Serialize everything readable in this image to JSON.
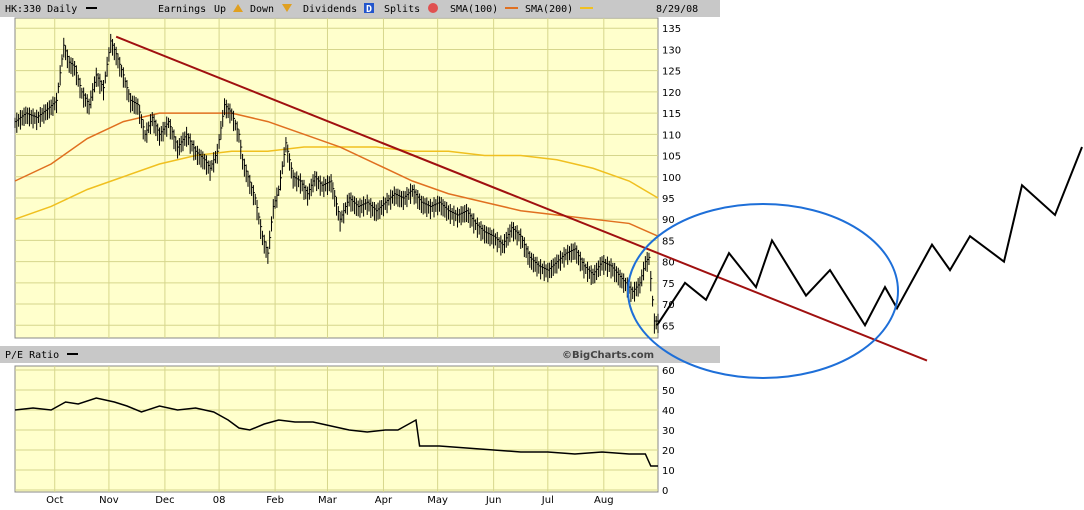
{
  "header": {
    "ticker_label": "HK:330 Daily",
    "earnings_label": "Earnings",
    "up_label": "Up",
    "down_label": "Down",
    "dividends_label": "Dividends",
    "dividends_marker": "D",
    "splits_label": "Splits",
    "sma100_label": "SMA(100)",
    "sma200_label": "SMA(200)",
    "date": "8/29/08"
  },
  "pe_panel": {
    "label": "P/E Ratio",
    "brand": "©BigCharts.com"
  },
  "colors": {
    "panel_bg": "#ffffcc",
    "grid": "#d6d68c",
    "header_bg": "#c8c8c8",
    "price": "#000000",
    "sma100": "#e07020",
    "sma200": "#f0c020",
    "trendline": "#a01010",
    "ellipse": "#1e6fd8",
    "projection": "#000000",
    "dividend_marker": "#2255cc",
    "split_marker": "#e05050",
    "earnings_up": "#e0a020",
    "earnings_down": "#e0a020"
  },
  "chart_data": [
    {
      "type": "line",
      "panel": "price",
      "ylim": [
        62,
        136
      ],
      "yticks": [
        65,
        70,
        75,
        80,
        85,
        90,
        95,
        100,
        105,
        110,
        115,
        120,
        125,
        130,
        135
      ],
      "x_axis": {
        "ticks": [
          "Oct",
          "Nov",
          "Dec",
          "08",
          "Feb",
          "Mar",
          "Apr",
          "May",
          "Jun",
          "Jul",
          "Aug"
        ],
        "tick_days": [
          22,
          52,
          83,
          113,
          144,
          173,
          204,
          234,
          265,
          295,
          326
        ],
        "range_days": [
          0,
          356
        ]
      },
      "series": [
        {
          "key": "price",
          "days": [
            0,
            6,
            12,
            18,
            23,
            27,
            30,
            33,
            37,
            41,
            45,
            49,
            53,
            56,
            60,
            64,
            68,
            72,
            76,
            80,
            85,
            90,
            95,
            100,
            105,
            108,
            112,
            116,
            120,
            124,
            126,
            129,
            133,
            137,
            140,
            143,
            146,
            150,
            154,
            158,
            162,
            166,
            170,
            175,
            180,
            185,
            190,
            195,
            200,
            205,
            210,
            215,
            220,
            225,
            230,
            235,
            240,
            245,
            250,
            255,
            260,
            265,
            270,
            275,
            280,
            285,
            290,
            295,
            300,
            305,
            310,
            315,
            320,
            325,
            330,
            334,
            338,
            342,
            346,
            349,
            351,
            354,
            356
          ],
          "values": [
            113,
            115,
            114,
            116,
            118,
            131,
            127,
            126,
            120,
            117,
            124,
            121,
            132,
            129,
            124,
            118,
            117,
            110,
            114,
            110,
            113,
            107,
            110,
            106,
            104,
            102,
            106,
            117,
            115,
            110,
            104,
            100,
            95,
            86,
            82,
            93,
            97,
            108,
            100,
            99,
            96,
            100,
            98,
            99,
            90,
            95,
            93,
            94,
            92,
            94,
            96,
            95,
            97,
            94,
            93,
            94,
            92,
            91,
            92,
            89,
            87,
            86,
            84,
            88,
            86,
            81,
            79,
            78,
            80,
            82,
            83,
            79,
            77,
            80,
            79,
            77,
            75,
            73,
            75,
            80,
            81,
            66,
            66
          ]
        },
        {
          "key": "sma100",
          "days": [
            0,
            20,
            40,
            60,
            80,
            100,
            120,
            140,
            160,
            180,
            200,
            220,
            240,
            260,
            280,
            300,
            320,
            340,
            356
          ],
          "values": [
            99,
            103,
            109,
            113,
            115,
            115,
            115,
            113,
            110,
            107,
            103,
            99,
            96,
            94,
            92,
            91,
            90,
            89,
            86
          ]
        },
        {
          "key": "sma200",
          "days": [
            0,
            20,
            40,
            60,
            80,
            100,
            120,
            140,
            160,
            180,
            200,
            220,
            240,
            260,
            280,
            300,
            320,
            340,
            356
          ],
          "values": [
            90,
            93,
            97,
            100,
            103,
            105,
            106,
            106,
            107,
            107,
            107,
            106,
            106,
            105,
            105,
            104,
            102,
            99,
            95
          ]
        },
        {
          "key": "trendline",
          "days": [
            56,
            356
          ],
          "values": [
            133,
            82
          ]
        }
      ]
    },
    {
      "type": "line",
      "panel": "pe_ratio",
      "ylim": [
        0,
        60
      ],
      "yticks": [
        0,
        10,
        20,
        30,
        40,
        50,
        60
      ],
      "series": [
        {
          "key": "pe",
          "days": [
            0,
            10,
            20,
            28,
            35,
            45,
            55,
            62,
            70,
            80,
            90,
            100,
            110,
            118,
            124,
            130,
            138,
            146,
            155,
            165,
            175,
            185,
            195,
            205,
            212,
            222,
            224,
            235,
            250,
            265,
            280,
            295,
            310,
            325,
            340,
            349,
            352,
            356
          ],
          "values": [
            40,
            41,
            40,
            44,
            43,
            46,
            44,
            42,
            39,
            42,
            40,
            41,
            39,
            35,
            31,
            30,
            33,
            35,
            34,
            34,
            32,
            30,
            29,
            30,
            30,
            35,
            22,
            22,
            21,
            20,
            19,
            19,
            18,
            19,
            18,
            18,
            12,
            12
          ]
        }
      ]
    }
  ],
  "annotation": {
    "projection": {
      "points_x": [
        657,
        685,
        706,
        729,
        756,
        772,
        806,
        830,
        865,
        885,
        897,
        932,
        950,
        970,
        1004,
        1022,
        1055,
        1082
      ],
      "points_price": [
        65,
        75,
        71,
        82,
        74,
        85,
        72,
        78,
        65,
        74,
        69,
        84,
        78,
        86,
        80,
        98,
        91,
        107
      ]
    },
    "ellipse": {
      "cx": 763,
      "cy": 291,
      "rx": 135,
      "ry": 87
    }
  }
}
